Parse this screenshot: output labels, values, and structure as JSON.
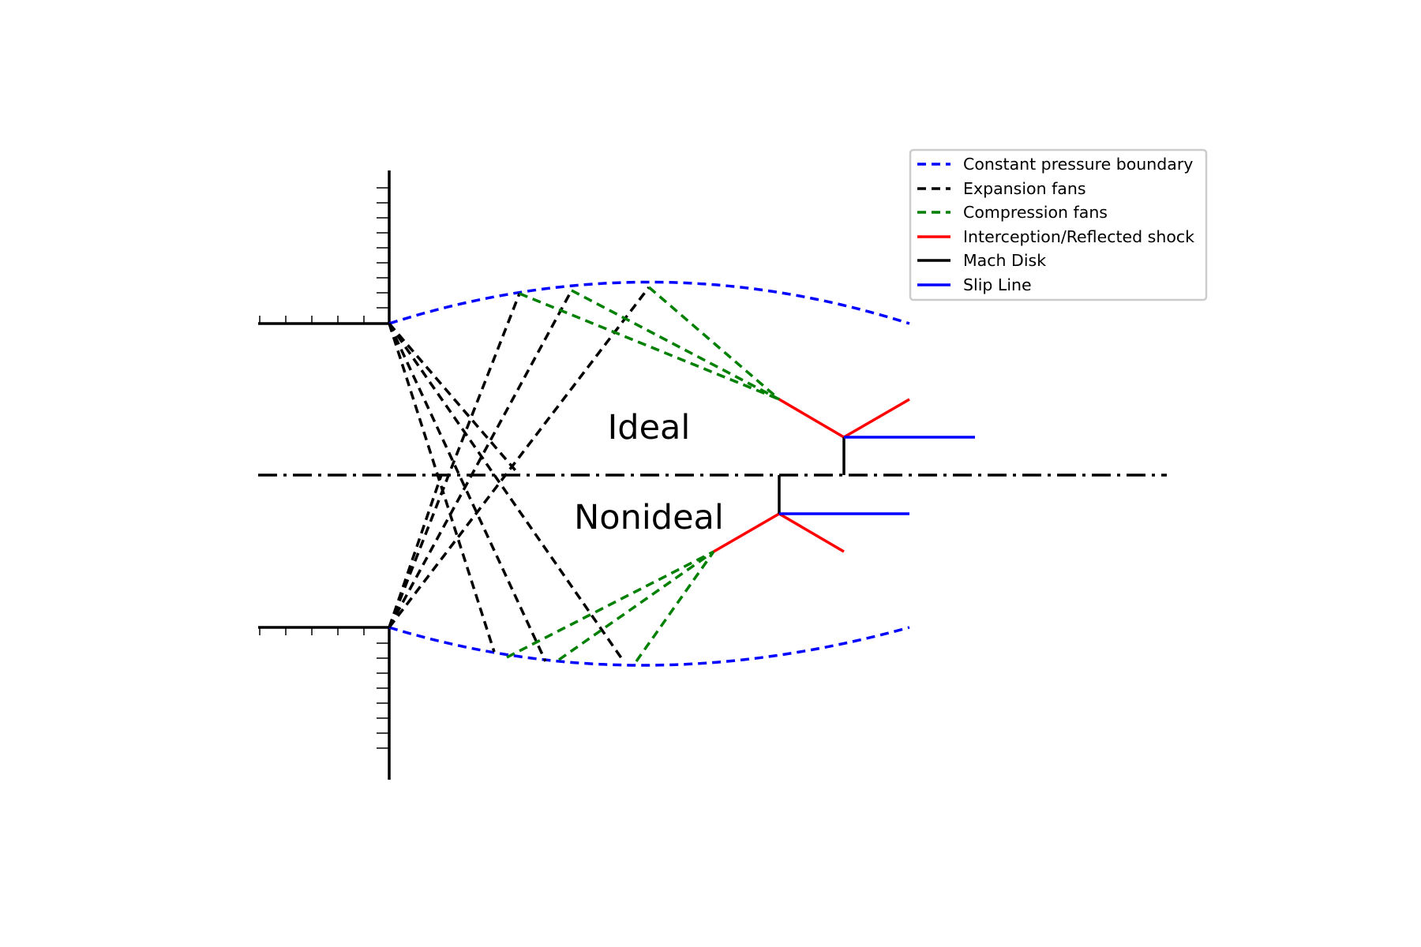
{
  "diagram": {
    "regions": {
      "upper": "Ideal",
      "lower": "Nonideal"
    },
    "legend": [
      {
        "label": "Constant pressure boundary",
        "color": "#0000ff",
        "style": "dashed"
      },
      {
        "label": "Expansion fans",
        "color": "#000000",
        "style": "dashed"
      },
      {
        "label": "Compression fans",
        "color": "#008000",
        "style": "dashed"
      },
      {
        "label": "Interception/Reflected shock",
        "color": "#ff0000",
        "style": "solid"
      },
      {
        "label": "Mach Disk",
        "color": "#000000",
        "style": "solid"
      },
      {
        "label": "Slip Line",
        "color": "#0000ff",
        "style": "solid"
      }
    ],
    "colors": {
      "boundary": "#0000ff",
      "expansion": "#000000",
      "compression": "#008000",
      "shock": "#ff0000",
      "mach_disk": "#000000",
      "slip_line": "#0000ff",
      "centerline": "#000000"
    }
  }
}
